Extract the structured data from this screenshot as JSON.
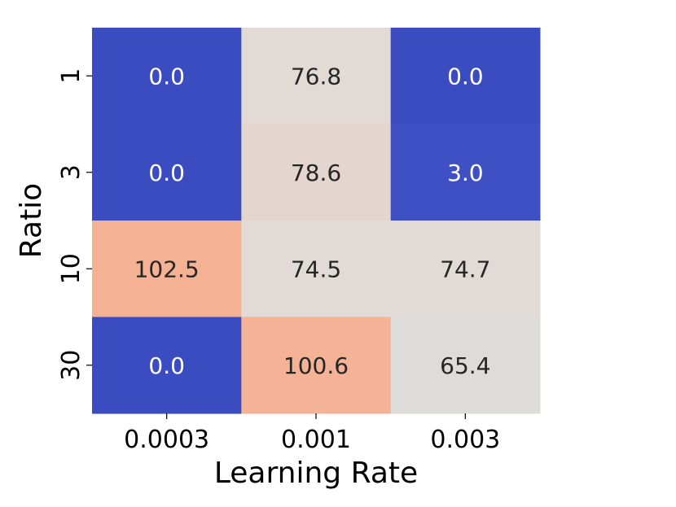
{
  "chart_data": {
    "type": "heatmap",
    "xlabel": "Learning Rate",
    "ylabel": "Ratio",
    "x_categories": [
      "0.0003",
      "0.001",
      "0.003"
    ],
    "y_categories": [
      "1",
      "3",
      "10",
      "30"
    ],
    "values": [
      [
        0.0,
        76.8,
        0.0
      ],
      [
        0.0,
        78.6,
        3.0
      ],
      [
        102.5,
        74.5,
        74.7
      ],
      [
        0.0,
        100.6,
        65.4
      ]
    ],
    "cell_labels": [
      [
        "0.0",
        "76.8",
        "0.0"
      ],
      [
        "0.0",
        "78.6",
        "3.0"
      ],
      [
        "102.5",
        "74.5",
        "74.7"
      ],
      [
        "0.0",
        "100.6",
        "65.4"
      ]
    ],
    "colormap": "coolwarm",
    "colorbar": false,
    "colors": {
      "low": "#3b4cc0",
      "mid": "#dddddd",
      "high": "#f4b194",
      "dark_text": "#262626",
      "light_text": "#ffffff"
    }
  }
}
